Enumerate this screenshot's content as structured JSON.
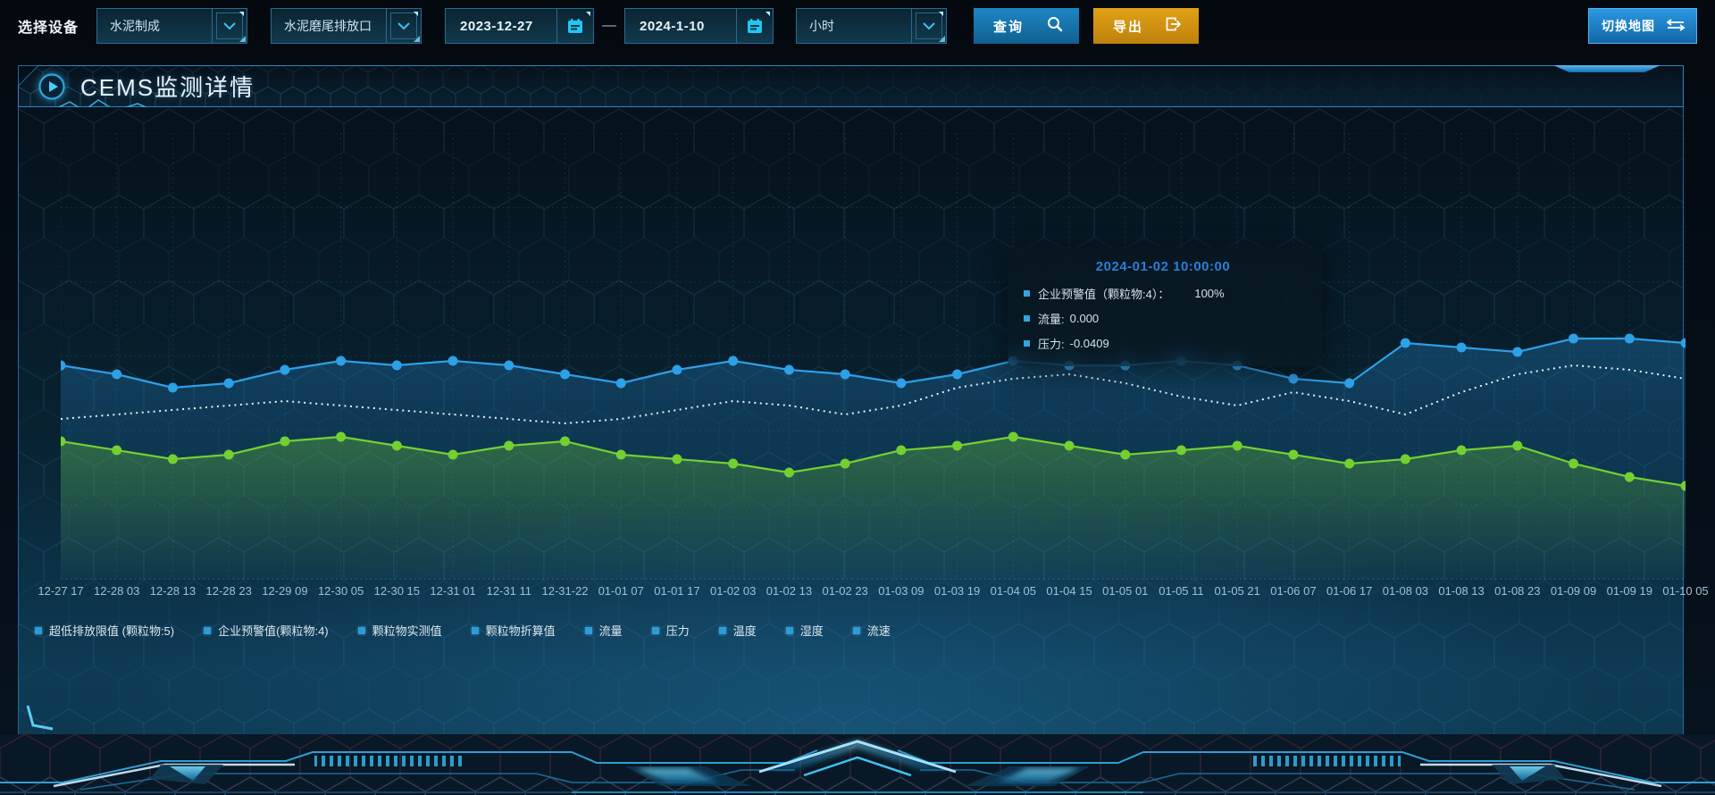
{
  "toolbar": {
    "device_label": "选择设备",
    "device_type": {
      "value": "水泥制成"
    },
    "outlet": {
      "value": "水泥磨尾排放口"
    },
    "start_date": {
      "value": "2023-12-27"
    },
    "date_separator": "—",
    "end_date": {
      "value": "2024-1-10"
    },
    "interval": {
      "value": "小时"
    },
    "query_label": "查询",
    "export_label": "导出",
    "switch_map_label": "切换地图"
  },
  "panel": {
    "title": "CEMS监测详情"
  },
  "tooltip": {
    "title": "2024-01-02 10:00:00",
    "title_color": "#2b7fd6",
    "marker_color": "#2ea6e0",
    "rows": [
      {
        "label": "企业预警值（颗粒物:4）：",
        "value": "100%"
      },
      {
        "label": "流量:",
        "value": "0.000"
      },
      {
        "label": "压力:",
        "value": "-0.0409"
      }
    ]
  },
  "legend": {
    "marker_color": "#2e9bd6",
    "items": [
      {
        "label": "超低排放限值 (颗粒物:5)"
      },
      {
        "label": "企业预警值(颗粒物:4)"
      },
      {
        "label": "颗粒物实测值"
      },
      {
        "label": "颗粒物折算值"
      },
      {
        "label": "流量"
      },
      {
        "label": "压力"
      },
      {
        "label": "温度"
      },
      {
        "label": "湿度"
      },
      {
        "label": "流速"
      }
    ]
  },
  "chart_data": {
    "type": "line",
    "grid": true,
    "legend_position": "bottom",
    "y_axis_labels_visible": false,
    "values_note": "y values estimated as percent of plot height from top; no y-axis scale is shown in the UI",
    "x_labels": [
      "12-27 17",
      "12-28 03",
      "12-28 13",
      "12-28 23",
      "12-29 09",
      "12-30 05",
      "12-30 15",
      "12-31 01",
      "12-31 11",
      "12-31-22",
      "01-01 07",
      "01-01 17",
      "01-02 03",
      "01-02 13",
      "01-02 23",
      "01-03 09",
      "01-03 19",
      "01-04 05",
      "01-04 15",
      "01-05 01",
      "01-05 11",
      "01-05 21",
      "01-06 07",
      "01-06 17",
      "01-08 03",
      "01-08 13",
      "01-08 23",
      "01-09 09",
      "01-09 19",
      "01-10 05"
    ],
    "series": [
      {
        "name": "企业预警值（颗粒物:4）",
        "color": "#2da0e8",
        "style": "solid",
        "dots": true,
        "area": "blue",
        "values": [
          52,
          54,
          57,
          56,
          53,
          51,
          52,
          51,
          52,
          54,
          56,
          53,
          51,
          53,
          54,
          56,
          54,
          51,
          52,
          52,
          51,
          52,
          55,
          56,
          47,
          48,
          49,
          46,
          46,
          47
        ]
      },
      {
        "name": "流量",
        "color": "#e9f2f6",
        "style": "dotted",
        "dots": false,
        "area": null,
        "values": [
          64,
          63,
          62,
          61,
          60,
          61,
          62,
          63,
          64,
          65,
          64,
          62,
          60,
          61,
          63,
          61,
          57,
          55,
          54,
          56,
          59,
          61,
          58,
          60,
          63,
          58,
          54,
          52,
          53,
          55
        ]
      },
      {
        "name": "压力",
        "color": "#74d031",
        "style": "solid",
        "dots": true,
        "area": "green",
        "values": [
          69,
          71,
          73,
          72,
          69,
          68,
          70,
          72,
          70,
          69,
          72,
          73,
          74,
          76,
          74,
          71,
          70,
          68,
          70,
          72,
          71,
          70,
          72,
          74,
          73,
          71,
          70,
          74,
          77,
          79
        ]
      }
    ]
  },
  "colors": {
    "accent_blue": "#2da0e8",
    "accent_green": "#74d031",
    "button_blue": "#1878b8",
    "button_orange": "#d8940f",
    "panel_border": "#1d6ba3"
  }
}
